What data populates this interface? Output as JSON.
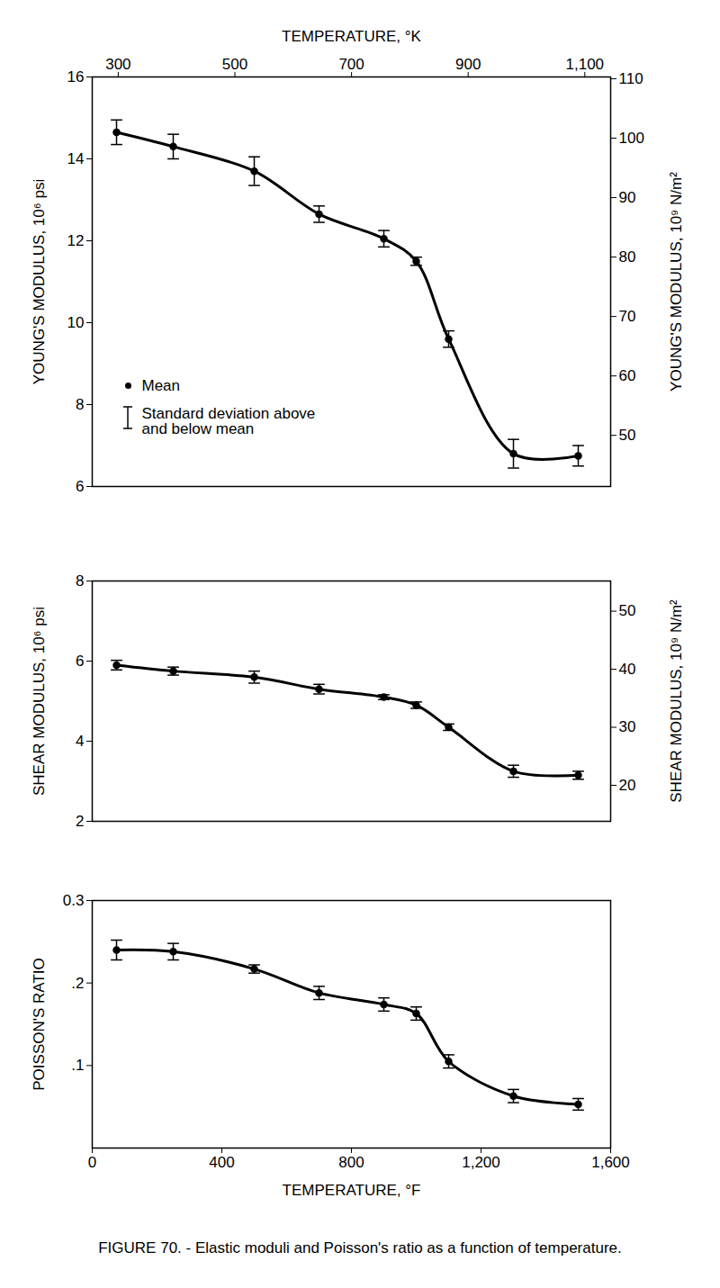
{
  "chart_data": [
    {
      "type": "line",
      "ylabel": "YOUNG'S MODULUS, 10⁶ psi",
      "y2label": "YOUNG'S MODULUS, 10⁹ N/m²",
      "x2label": "TEMPERATURE, °K",
      "x": [
        75,
        250,
        500,
        700,
        900,
        1000,
        1100,
        1300,
        1500
      ],
      "series": [
        {
          "name": "Mean",
          "error_label": "Standard deviation above and below mean",
          "color": "#000000",
          "marker": "circle",
          "line_style": "solid",
          "values": [
            14.65,
            14.3,
            13.7,
            12.65,
            12.05,
            11.5,
            9.6,
            6.8,
            6.75
          ],
          "errors": [
            0.3,
            0.3,
            0.35,
            0.2,
            0.2,
            0.1,
            0.2,
            0.35,
            0.25
          ]
        }
      ],
      "xlim": [
        0,
        1600
      ],
      "ylim": [
        6,
        16
      ],
      "yticks": [
        6,
        8,
        10,
        12,
        14,
        16
      ],
      "y2lim": [
        41.4,
        110.3
      ],
      "y2ticks": [
        50,
        60,
        70,
        80,
        90,
        100,
        110
      ],
      "x2lim": [
        255.4,
        1144.3
      ],
      "x2ticks": [
        300,
        500,
        700,
        900,
        {
          "value": 1100,
          "label": "1,100"
        }
      ],
      "legend": "left"
    },
    {
      "type": "line",
      "ylabel": "SHEAR MODULUS, 10⁶ psi",
      "y2label": "SHEAR MODULUS, 10⁹ N/m²",
      "x": [
        75,
        250,
        500,
        700,
        900,
        1000,
        1100,
        1300,
        1500
      ],
      "series": [
        {
          "color": "#000000",
          "marker": "circle",
          "line_style": "solid",
          "values": [
            5.9,
            5.75,
            5.6,
            5.3,
            5.1,
            4.9,
            4.35,
            3.25,
            3.15
          ],
          "errors": [
            0.12,
            0.1,
            0.15,
            0.12,
            0.06,
            0.08,
            0.08,
            0.15,
            0.1
          ]
        }
      ],
      "xlim": [
        0,
        1600
      ],
      "ylim": [
        2,
        8
      ],
      "yticks": [
        2,
        4,
        6,
        8
      ],
      "y2lim": [
        13.8,
        55.2
      ],
      "y2ticks": [
        20,
        30,
        40,
        50
      ]
    },
    {
      "type": "line",
      "ylabel": "POISSON'S RATIO",
      "xlabel": "TEMPERATURE, °F",
      "x": [
        75,
        250,
        500,
        700,
        900,
        1000,
        1100,
        1300,
        1500
      ],
      "series": [
        {
          "color": "#000000",
          "marker": "circle",
          "line_style": "solid",
          "values": [
            0.24,
            0.238,
            0.217,
            0.188,
            0.174,
            0.163,
            0.105,
            0.063,
            0.053
          ],
          "errors": [
            0.012,
            0.01,
            0.005,
            0.008,
            0.008,
            0.008,
            0.008,
            0.008,
            0.007
          ]
        }
      ],
      "xlim": [
        0,
        1600
      ],
      "xticks": [
        0,
        400,
        800,
        {
          "value": 1200,
          "label": "1,200"
        },
        {
          "value": 1600,
          "label": "1,600"
        }
      ],
      "ylim": [
        0,
        0.3
      ],
      "yticks": [
        {
          "value": 0.1,
          "label": ".1"
        },
        {
          "value": 0.2,
          "label": ".2"
        },
        {
          "value": 0.3,
          "label": "0.3"
        }
      ]
    }
  ],
  "caption": "FIGURE 70. - Elastic moduli and Poisson's ratio as a function of temperature."
}
